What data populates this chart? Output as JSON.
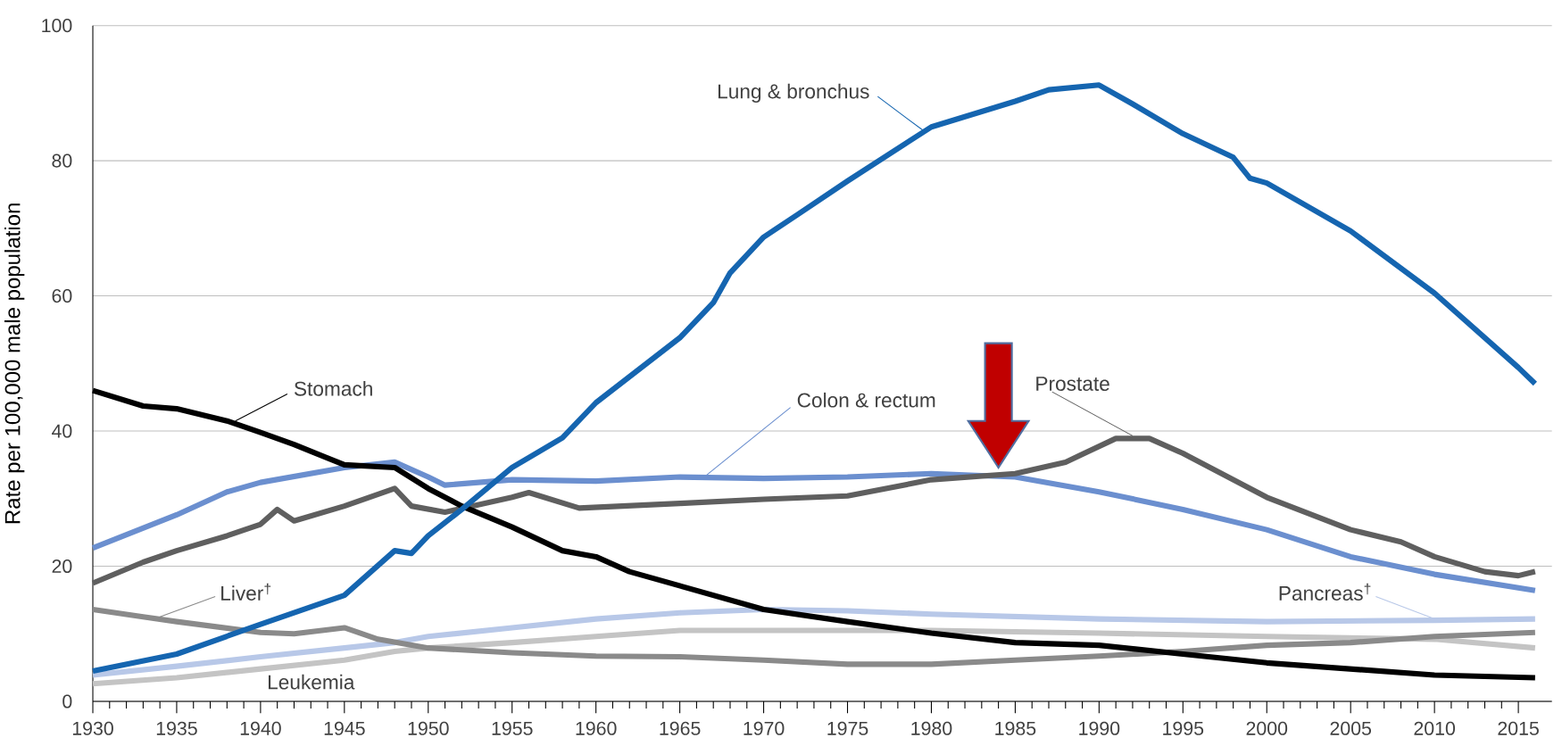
{
  "chart_data": {
    "type": "line",
    "ylabel": "Rate per 100,000 male population",
    "xlim": [
      1930,
      2017
    ],
    "ylim": [
      0,
      100
    ],
    "xticks": [
      1930,
      1935,
      1940,
      1945,
      1950,
      1955,
      1960,
      1965,
      1970,
      1975,
      1980,
      1985,
      1990,
      1995,
      2000,
      2005,
      2010,
      2015
    ],
    "yticks": [
      0,
      20,
      40,
      60,
      80,
      100
    ],
    "grid": "y",
    "line_style": "solid",
    "series": [
      {
        "name": "Pancreas$^{†}$",
        "color": "#b8c8e8",
        "x": [
          1930,
          1935,
          1940,
          1945,
          1948,
          1950,
          1955,
          1960,
          1965,
          1970,
          1975,
          1980,
          1990,
          2000,
          2010,
          2016
        ],
        "values": [
          3.9,
          5.2,
          6.6,
          7.9,
          8.7,
          9.6,
          10.9,
          12.2,
          13.1,
          13.6,
          13.4,
          12.9,
          12.2,
          11.8,
          12,
          12.2
        ]
      },
      {
        "name": "Leukemia",
        "color": "#c4c4c4",
        "x": [
          1930,
          1935,
          1940,
          1945,
          1948,
          1950,
          1955,
          1960,
          1965,
          1970,
          1980,
          1990,
          2000,
          2010,
          2016
        ],
        "values": [
          2.6,
          3.5,
          4.8,
          6.1,
          7.4,
          7.9,
          8.7,
          9.6,
          10.5,
          10.5,
          10.5,
          10.1,
          9.6,
          9.2,
          7.9
        ]
      },
      {
        "name": "Liver$^{†}$",
        "color": "#8a8a8a",
        "x": [
          1930,
          1933,
          1935,
          1940,
          1942,
          1945,
          1947,
          1950,
          1955,
          1960,
          1965,
          1970,
          1975,
          1980,
          1985,
          1990,
          1995,
          2000,
          2005,
          2010,
          2016
        ],
        "values": [
          13.6,
          12.5,
          11.8,
          10.2,
          10,
          10.9,
          9.2,
          7.9,
          7.2,
          6.7,
          6.6,
          6.1,
          5.5,
          5.5,
          6.1,
          6.7,
          7.4,
          8.3,
          8.7,
          9.6,
          10.2
        ]
      },
      {
        "name": "Colon & rectum",
        "color": "#6b8fcf",
        "x": [
          1930,
          1935,
          1938,
          1940,
          1945,
          1948,
          1950,
          1951,
          1955,
          1960,
          1965,
          1970,
          1975,
          1980,
          1985,
          1990,
          1995,
          2000,
          2005,
          2010,
          2016
        ],
        "values": [
          22.7,
          27.6,
          31,
          32.4,
          34.6,
          35.4,
          33.2,
          32,
          32.8,
          32.6,
          33.2,
          33,
          33.2,
          33.7,
          33.2,
          31,
          28.4,
          25.4,
          21.4,
          18.8,
          16.4
        ]
      },
      {
        "name": "Prostate",
        "color": "#5f5f5f",
        "x": [
          1930,
          1933,
          1935,
          1938,
          1940,
          1941,
          1942,
          1945,
          1948,
          1949,
          1951,
          1955,
          1956,
          1959,
          1965,
          1970,
          1975,
          1980,
          1985,
          1988,
          1991,
          1993,
          1995,
          2000,
          2005,
          2008,
          2010,
          2013,
          2015,
          2016
        ],
        "values": [
          17.5,
          20.6,
          22.3,
          24.5,
          26.2,
          28.4,
          26.7,
          28.9,
          31.5,
          28.9,
          28,
          30.2,
          30.9,
          28.6,
          29.3,
          29.9,
          30.4,
          32.8,
          33.7,
          35.4,
          38.9,
          38.9,
          36.7,
          30.2,
          25.4,
          23.6,
          21.4,
          19.2,
          18.6,
          19.2
        ]
      },
      {
        "name": "Stomach",
        "color": "#000000",
        "x": [
          1930,
          1933,
          1935,
          1938,
          1940,
          1942,
          1945,
          1948,
          1950,
          1952,
          1955,
          1958,
          1960,
          1962,
          1965,
          1970,
          1975,
          1980,
          1985,
          1990,
          1995,
          2000,
          2005,
          2010,
          2016
        ],
        "values": [
          46,
          43.7,
          43.3,
          41.5,
          39.8,
          38,
          35,
          34.6,
          31.5,
          28.9,
          25.8,
          22.3,
          21.4,
          19.2,
          17.1,
          13.6,
          11.8,
          10.1,
          8.7,
          8.3,
          7,
          5.7,
          4.8,
          3.9,
          3.5
        ]
      },
      {
        "name": "Lung & bronchus",
        "color": "#1565b0",
        "x": [
          1930,
          1935,
          1940,
          1945,
          1948,
          1949,
          1950,
          1952,
          1955,
          1958,
          1960,
          1965,
          1967,
          1968,
          1970,
          1972,
          1975,
          1980,
          1985,
          1987,
          1990,
          1992,
          1995,
          1998,
          1999,
          2000,
          2005,
          2010,
          2015,
          2016
        ],
        "values": [
          4.5,
          7,
          11.4,
          15.7,
          22.3,
          21.9,
          24.5,
          28.4,
          34.6,
          39,
          44.2,
          53.8,
          59,
          63.4,
          68.7,
          72,
          77,
          85,
          88.8,
          90.5,
          91.2,
          88.4,
          84,
          80.5,
          77.4,
          76.7,
          69.6,
          60.4,
          49.4,
          47
        ]
      }
    ]
  }
}
